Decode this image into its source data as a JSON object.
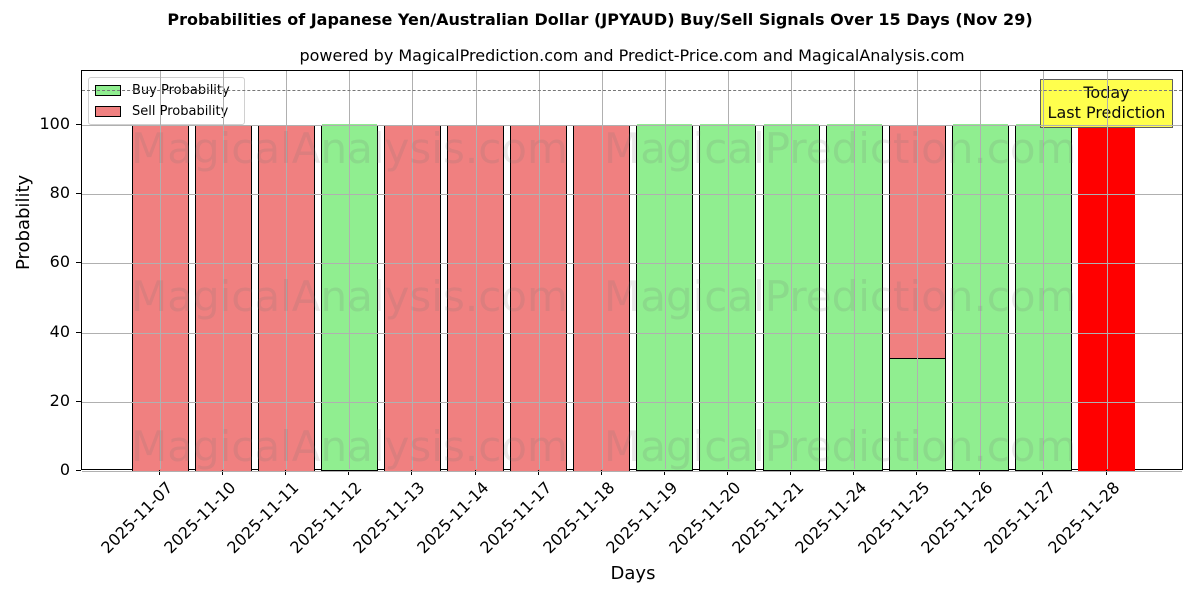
{
  "header": {
    "title": "Probabilities of Japanese Yen/Australian Dollar (JPYAUD) Buy/Sell Signals Over 15 Days (Nov 29)",
    "subtitle": "powered by MagicalPrediction.com and Predict-Price.com and MagicalAnalysis.com"
  },
  "axes": {
    "xlabel": "Days",
    "ylabel": "Probability",
    "yticks": [
      "0",
      "20",
      "40",
      "60",
      "80",
      "100"
    ]
  },
  "legend": {
    "buy_label": "Buy Probability",
    "sell_label": "Sell Probability"
  },
  "annotation": {
    "line1": "Today",
    "line2": "Last Prediction"
  },
  "watermarks": [
    "MagicalAnalysis.com",
    "MagicalPrediction.com"
  ],
  "colors": {
    "buy": "#90ee90",
    "sell": "#f08080",
    "today": "#ff0000",
    "annotation_bg": "#ffff44",
    "dashed_line": "#777777"
  },
  "chart_data": {
    "type": "bar",
    "stacked": true,
    "title": "Probabilities of Japanese Yen/Australian Dollar (JPYAUD) Buy/Sell Signals Over 15 Days (Nov 29)",
    "subtitle": "powered by MagicalPrediction.com and Predict-Price.com and MagicalAnalysis.com",
    "xlabel": "Days",
    "ylabel": "Probability",
    "ylim": [
      0,
      115.6
    ],
    "yticks": [
      0,
      20,
      40,
      60,
      80,
      100
    ],
    "grid": true,
    "legend_position": "upper left",
    "reference_line": {
      "y": 110,
      "style": "dashed",
      "color": "#777777"
    },
    "categories": [
      "2025-11-07",
      "2025-11-10",
      "2025-11-11",
      "2025-11-12",
      "2025-11-13",
      "2025-11-14",
      "2025-11-17",
      "2025-11-18",
      "2025-11-19",
      "2025-11-20",
      "2025-11-21",
      "2025-11-24",
      "2025-11-25",
      "2025-11-26",
      "2025-11-27",
      "2025-11-28"
    ],
    "series": [
      {
        "name": "Buy Probability",
        "color": "#90ee90",
        "values": [
          0,
          0,
          0,
          100,
          0,
          0,
          0,
          0,
          100,
          100,
          100,
          100,
          32.7,
          100,
          100,
          0
        ]
      },
      {
        "name": "Sell Probability",
        "color": "#f08080",
        "values": [
          100,
          100,
          100,
          0,
          100,
          100,
          100,
          100,
          0,
          0,
          0,
          0,
          67.3,
          0,
          0,
          100
        ]
      }
    ],
    "highlight": {
      "category": "2025-11-28",
      "color": "#ff0000",
      "label": "Today\nLast Prediction"
    }
  }
}
